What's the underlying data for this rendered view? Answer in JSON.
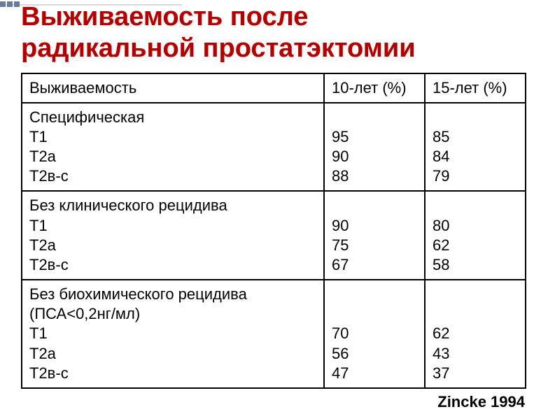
{
  "title_line1": "Выживаемость после",
  "title_line2": "радикальной простатэктомии",
  "header": {
    "c0": "Выживаемость",
    "c1": "10-лет (%)",
    "c2": "15-лет (%)"
  },
  "groups": [
    {
      "label": "Специфическая",
      "rows": [
        {
          "name": "T1",
          "v10": "95",
          "v15": "85"
        },
        {
          "name": "T2a",
          "v10": "90",
          "v15": "84"
        },
        {
          "name": "T2в-c",
          "v10": "88",
          "v15": "79"
        }
      ]
    },
    {
      "label": "Без клинического рецидива",
      "rows": [
        {
          "name": "T1",
          "v10": "90",
          "v15": "80"
        },
        {
          "name": "T2a",
          "v10": "75",
          "v15": "62"
        },
        {
          "name": "T2в-c",
          "v10": "67",
          "v15": "58"
        }
      ]
    },
    {
      "label": "Без биохимического рецидива",
      "sublabel": "(ПСА<0,2нг/мл)",
      "rows": [
        {
          "name": "T1",
          "v10": "70",
          "v15": "62"
        },
        {
          "name": "T2a",
          "v10": "56",
          "v15": "43"
        },
        {
          "name": "T2в-c",
          "v10": "47",
          "v15": "37"
        }
      ]
    }
  ],
  "citation": "Zincke 1994",
  "colors": {
    "title": "#b30000",
    "border": "#000000",
    "text": "#000000",
    "deco_dot": "#6a7a99",
    "deco_line": "#d9d9d9"
  },
  "fontsize": {
    "title": 38,
    "cell": 22,
    "citation": 22
  }
}
